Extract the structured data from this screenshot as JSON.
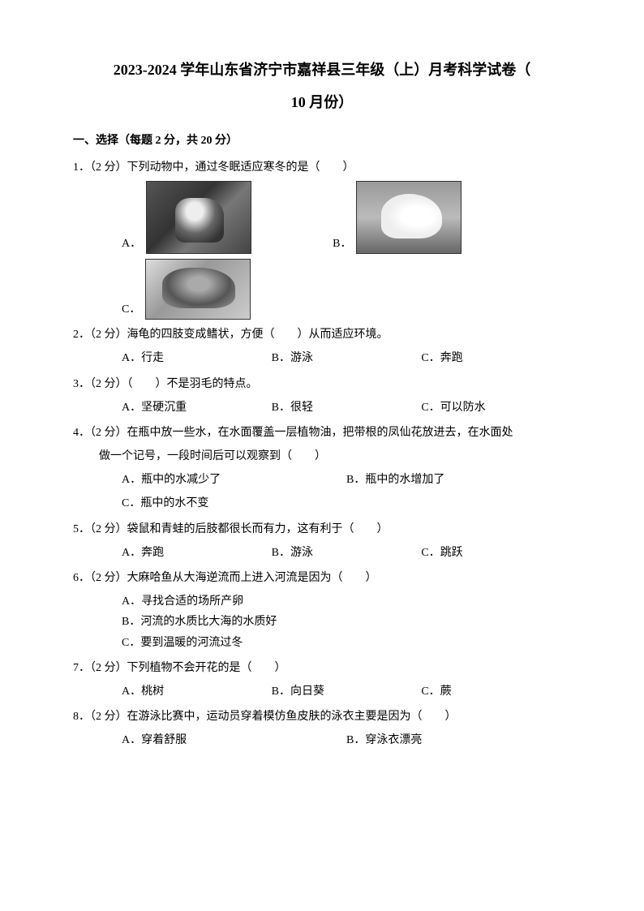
{
  "title": "2023-2024 学年山东省济宁市嘉祥县三年级（上）月考科学试卷（",
  "subtitle": "10 月份）",
  "section_header": "一、选择（每题 2 分，共 20 分）",
  "q1": {
    "text": "1．（2 分）下列动物中，通过冬眠适应寒冬的是（　　）",
    "optA": "A．",
    "optB": "B．",
    "optC": "C．"
  },
  "q2": {
    "text": "2．（2 分）海龟的四肢变成鳍状，方便（　　）从而适应环境。",
    "optA": "A．行走",
    "optB": "B．游泳",
    "optC": "C．奔跑"
  },
  "q3": {
    "text": "3．（2 分）（　　）不是羽毛的特点。",
    "optA": "A．坚硬沉重",
    "optB": "B．很轻",
    "optC": "C．可以防水"
  },
  "q4": {
    "text": "4．（2 分）在瓶中放一些水，在水面覆盖一层植物油，把带根的凤仙花放进去，在水面处",
    "text2": "做一个记号，一段时间后可以观察到（　　）",
    "optA": "A．瓶中的水减少了",
    "optB": "B．瓶中的水增加了",
    "optC": "C．瓶中的水不变"
  },
  "q5": {
    "text": "5．（2 分）袋鼠和青蛙的后肢都很长而有力，这有利于（　　）",
    "optA": "A．奔跑",
    "optB": "B．游泳",
    "optC": "C．跳跃"
  },
  "q6": {
    "text": "6．（2 分）大麻哈鱼从大海逆流而上进入河流是因为（　　）",
    "optA": "A．寻找合适的场所产卵",
    "optB": "B．河流的水质比大海的水质好",
    "optC": "C．要到温暖的河流过冬"
  },
  "q7": {
    "text": "7．（2 分）下列植物不会开花的是（　　）",
    "optA": "A．桃树",
    "optB": "B．向日葵",
    "optC": "C．蕨"
  },
  "q8": {
    "text": "8．（2 分）在游泳比赛中，运动员穿着模仿鱼皮肤的泳衣主要是因为（　　）",
    "optA": "A．穿着舒服",
    "optB": "B．穿泳衣漂亮"
  }
}
